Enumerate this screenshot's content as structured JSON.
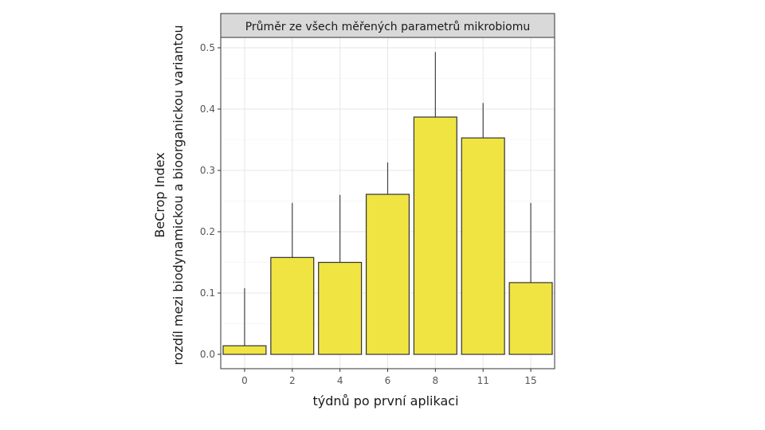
{
  "chart_data": {
    "type": "bar",
    "title": "Průměr ze všech měřených parametrů mikrobiomu",
    "xlabel": "týdnů po první aplikaci",
    "ylabel_line1": "BeCrop Index",
    "ylabel_line2": "rozdíl mezi biodynamickou a bioorganickou variantou",
    "categories": [
      "0",
      "2",
      "4",
      "6",
      "8",
      "11",
      "15"
    ],
    "values": [
      0.014,
      0.158,
      0.15,
      0.261,
      0.387,
      0.353,
      0.117
    ],
    "error_upper": [
      0.108,
      0.247,
      0.26,
      0.313,
      0.493,
      0.41,
      0.247
    ],
    "ylim": [
      -0.02,
      0.52
    ],
    "yticks": [
      0.0,
      0.1,
      0.2,
      0.3,
      0.4,
      0.5
    ],
    "ytick_labels": [
      "0.0",
      "0.1",
      "0.2",
      "0.3",
      "0.4",
      "0.5"
    ],
    "grid": true,
    "legend": "none",
    "bar_color": "#f0e442",
    "bar_edge_color": "#333333",
    "facet_strip_color": "#d9d9d9"
  }
}
